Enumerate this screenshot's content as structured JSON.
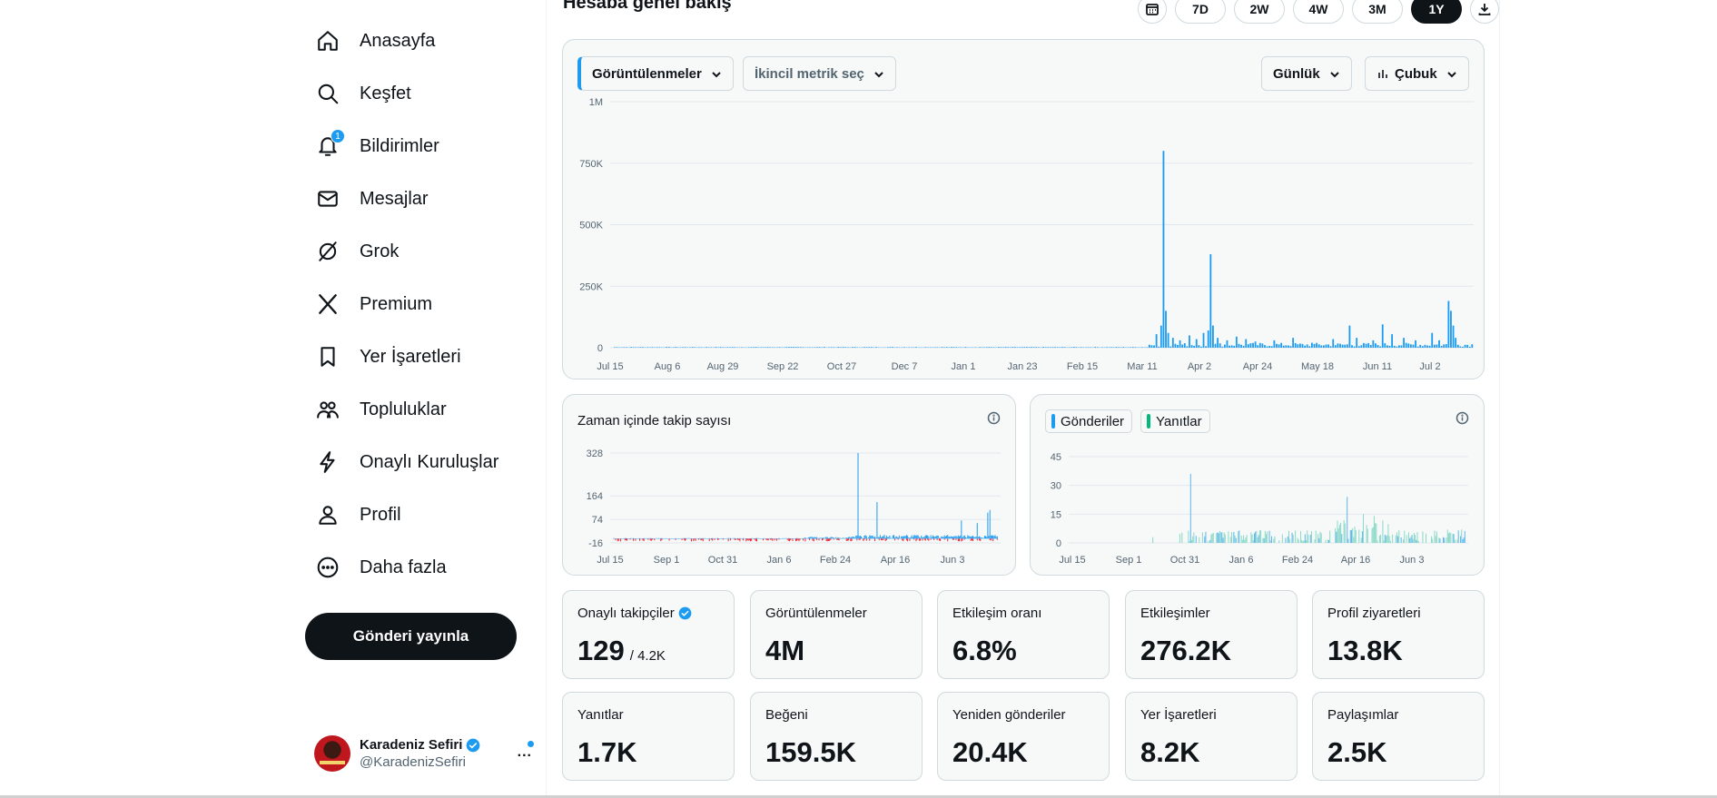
{
  "sidebar": {
    "items": [
      {
        "label": "Anasayfa",
        "icon": "home-icon"
      },
      {
        "label": "Keşfet",
        "icon": "search-icon"
      },
      {
        "label": "Bildirimler",
        "icon": "bell-icon",
        "badge": "1"
      },
      {
        "label": "Mesajlar",
        "icon": "mail-icon"
      },
      {
        "label": "Grok",
        "icon": "grok-icon"
      },
      {
        "label": "Premium",
        "icon": "x-logo-icon"
      },
      {
        "label": "Yer İşaretleri",
        "icon": "bookmark-icon"
      },
      {
        "label": "Topluluklar",
        "icon": "communities-icon"
      },
      {
        "label": "Onaylı Kuruluşlar",
        "icon": "lightning-icon"
      },
      {
        "label": "Profil",
        "icon": "person-icon"
      },
      {
        "label": "Daha fazla",
        "icon": "more-circle-icon"
      }
    ],
    "post_button": "Gönderi yayınla",
    "account": {
      "name": "Karadeniz Sefiri",
      "handle": "@KaradenizSefiri",
      "more": "..."
    }
  },
  "header": {
    "title": "Hesaba genel bakış",
    "ranges": [
      "7D",
      "2W",
      "4W",
      "3M",
      "1Y"
    ],
    "active_range": "1Y"
  },
  "main_chart": {
    "primary_metric": "Görüntülenmeler",
    "secondary_metric": "İkincil metrik seç",
    "interval": "Günlük",
    "chart_style": "Çubuk"
  },
  "follow_chart": {
    "title": "Zaman içinde takip sayısı"
  },
  "posts_chart": {
    "legend": [
      "Gönderiler",
      "Yanıtlar"
    ]
  },
  "stats": [
    {
      "label": "Onaylı takipçiler",
      "value": "129",
      "sub": "/ 4.2K",
      "verified": true
    },
    {
      "label": "Görüntülenmeler",
      "value": "4M"
    },
    {
      "label": "Etkileşim oranı",
      "value": "6.8%"
    },
    {
      "label": "Etkileşimler",
      "value": "276.2K"
    },
    {
      "label": "Profil ziyaretleri",
      "value": "13.8K"
    },
    {
      "label": "Yanıtlar",
      "value": "1.7K"
    },
    {
      "label": "Beğeni",
      "value": "159.5K"
    },
    {
      "label": "Yeniden gönderiler",
      "value": "20.4K"
    },
    {
      "label": "Yer İşaretleri",
      "value": "8.2K"
    },
    {
      "label": "Paylaşımlar",
      "value": "2.5K"
    }
  ],
  "colors": {
    "accent": "#1d9bf0",
    "replies": "#00ba7c",
    "unfollow": "#f4212e",
    "text": "#0f1419",
    "muted": "#536471",
    "border": "#cfd9de"
  },
  "chart_data": [
    {
      "type": "bar",
      "ylabel": "",
      "ylim": [
        0,
        1000000
      ],
      "yticks": [
        "0",
        "250K",
        "500K",
        "750K",
        "1M"
      ],
      "xticks": [
        "Jul 15",
        "Aug 6",
        "Aug 29",
        "Sep 22",
        "Oct 27",
        "Dec 7",
        "Jan 1",
        "Jan 23",
        "Feb 15",
        "Mar 11",
        "Apr 2",
        "Apr 24",
        "May 18",
        "Jun 11",
        "Jul 2"
      ],
      "n_days": 365,
      "baseline_value": 2000,
      "peaks": [
        {
          "day": 228,
          "value": 10000
        },
        {
          "day": 230,
          "value": 55000
        },
        {
          "day": 232,
          "value": 90000
        },
        {
          "day": 233,
          "value": 800000
        },
        {
          "day": 234,
          "value": 150000
        },
        {
          "day": 235,
          "value": 60000
        },
        {
          "day": 237,
          "value": 40000
        },
        {
          "day": 240,
          "value": 30000
        },
        {
          "day": 244,
          "value": 50000
        },
        {
          "day": 247,
          "value": 35000
        },
        {
          "day": 250,
          "value": 60000
        },
        {
          "day": 252,
          "value": 70000
        },
        {
          "day": 253,
          "value": 380000
        },
        {
          "day": 254,
          "value": 90000
        },
        {
          "day": 256,
          "value": 40000
        },
        {
          "day": 260,
          "value": 30000
        },
        {
          "day": 264,
          "value": 45000
        },
        {
          "day": 268,
          "value": 35000
        },
        {
          "day": 272,
          "value": 25000
        },
        {
          "day": 280,
          "value": 30000
        },
        {
          "day": 288,
          "value": 40000
        },
        {
          "day": 296,
          "value": 20000
        },
        {
          "day": 305,
          "value": 35000
        },
        {
          "day": 312,
          "value": 90000
        },
        {
          "day": 315,
          "value": 40000
        },
        {
          "day": 322,
          "value": 30000
        },
        {
          "day": 326,
          "value": 95000
        },
        {
          "day": 330,
          "value": 55000
        },
        {
          "day": 335,
          "value": 40000
        },
        {
          "day": 340,
          "value": 30000
        },
        {
          "day": 347,
          "value": 60000
        },
        {
          "day": 350,
          "value": 30000
        },
        {
          "day": 354,
          "value": 190000
        },
        {
          "day": 355,
          "value": 150000
        },
        {
          "day": 356,
          "value": 90000
        },
        {
          "day": 357,
          "value": 40000
        }
      ]
    },
    {
      "type": "bar",
      "yticks": [
        "-16",
        "74",
        "164",
        "328"
      ],
      "ylim": [
        -16,
        328
      ],
      "xticks": [
        "Jul 15",
        "Sep 1",
        "Oct 31",
        "Jan 6",
        "Feb 24",
        "Apr 16",
        "Jun 3"
      ],
      "n_days": 365,
      "peaks": [
        {
          "day": 232,
          "value": 328
        },
        {
          "day": 250,
          "value": 140
        },
        {
          "day": 330,
          "value": 70
        },
        {
          "day": 345,
          "value": 60
        },
        {
          "day": 355,
          "value": 100
        },
        {
          "day": 357,
          "value": 110
        }
      ]
    },
    {
      "type": "bar",
      "yticks": [
        "0",
        "15",
        "30",
        "45"
      ],
      "ylim": [
        0,
        45
      ],
      "xticks": [
        "Jul 15",
        "Sep 1",
        "Oct 31",
        "Jan 6",
        "Feb 24",
        "Apr 16",
        "Jun 3"
      ],
      "n_days": 365,
      "peaks": [
        {
          "day": 110,
          "value": 36
        },
        {
          "day": 255,
          "value": 24
        },
        {
          "day": 270,
          "value": 15
        },
        {
          "day": 280,
          "value": 14
        }
      ]
    }
  ]
}
